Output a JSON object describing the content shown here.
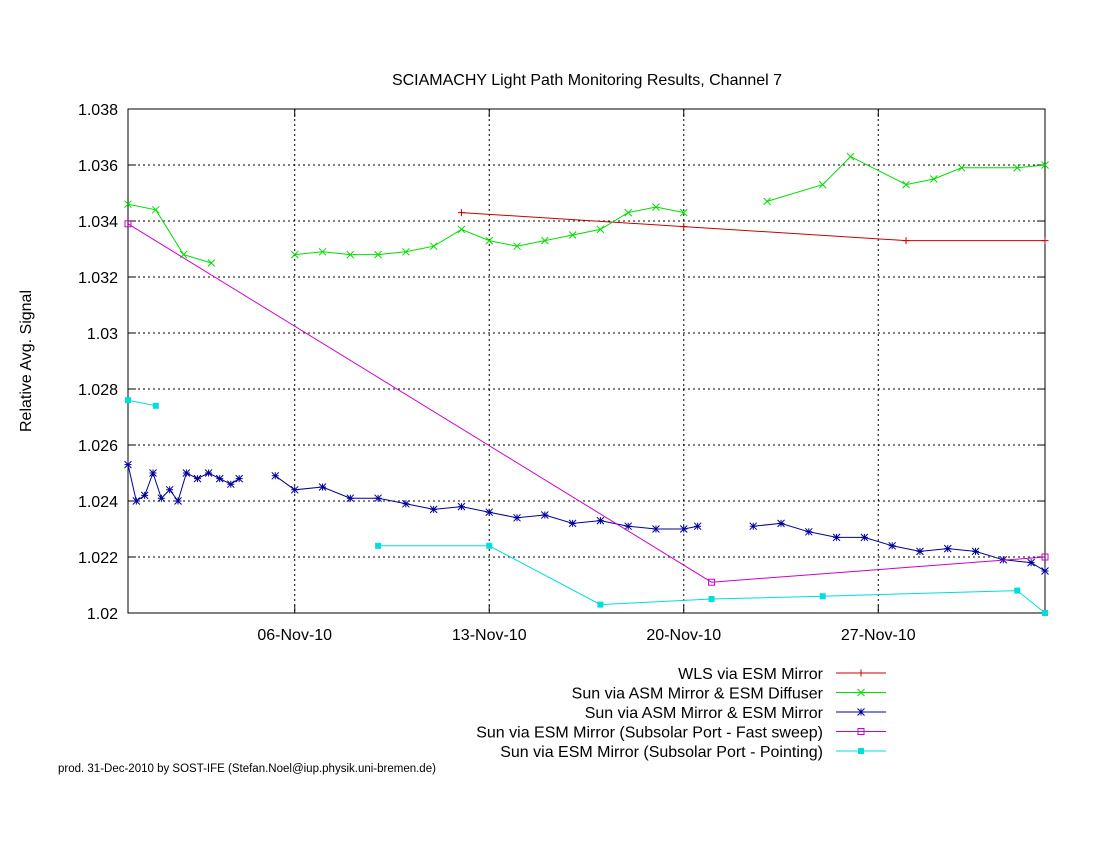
{
  "chart_data": {
    "type": "line",
    "title": "SCIAMACHY Light Path Monitoring Results, Channel 7",
    "ylabel": "Relative Avg. Signal",
    "xlabel": "",
    "x_type": "date",
    "xlim": [
      "2010-10-31",
      "2010-12-03"
    ],
    "ylim": [
      1.02,
      1.038
    ],
    "yticks": [
      1.02,
      1.022,
      1.024,
      1.026,
      1.028,
      1.03,
      1.032,
      1.034,
      1.036,
      1.038
    ],
    "ytick_labels": [
      "1.02",
      "1.022",
      "1.024",
      "1.026",
      "1.028",
      "1.03",
      "1.032",
      "1.034",
      "1.036",
      "1.038"
    ],
    "xticks": [
      "2010-11-06",
      "2010-11-13",
      "2010-11-20",
      "2010-11-27"
    ],
    "xtick_labels": [
      "06-Nov-10",
      "13-Nov-10",
      "20-Nov-10",
      "27-Nov-10"
    ],
    "grid": true,
    "legend_position": "below-right",
    "series": [
      {
        "name": "WLS via ESM Mirror",
        "color": "#cc0000",
        "marker": "plus",
        "segments": [
          [
            [
              "2010-11-12",
              1.0343
            ],
            [
              "2010-11-20",
              1.0338
            ],
            [
              "2010-11-28",
              1.0333
            ],
            [
              "2010-12-03",
              1.0333
            ]
          ]
        ]
      },
      {
        "name": "Sun via ASM Mirror & ESM Diffuser",
        "color": "#00dd00",
        "marker": "x",
        "segments": [
          [
            [
              "2010-10-31",
              1.0346
            ],
            [
              "2010-11-01",
              1.0344
            ],
            [
              "2010-11-02",
              1.0328
            ],
            [
              "2010-11-03",
              1.0325
            ]
          ],
          [
            [
              "2010-11-06",
              1.0328
            ],
            [
              "2010-11-07",
              1.0329
            ],
            [
              "2010-11-08",
              1.0328
            ],
            [
              "2010-11-09",
              1.0328
            ],
            [
              "2010-11-10",
              1.0329
            ],
            [
              "2010-11-11",
              1.0331
            ],
            [
              "2010-11-12",
              1.0337
            ],
            [
              "2010-11-13",
              1.0333
            ],
            [
              "2010-11-14",
              1.0331
            ],
            [
              "2010-11-15",
              1.0333
            ],
            [
              "2010-11-16",
              1.0335
            ],
            [
              "2010-11-17",
              1.0337
            ],
            [
              "2010-11-18",
              1.0343
            ],
            [
              "2010-11-19",
              1.0345
            ],
            [
              "2010-11-20",
              1.0343
            ]
          ],
          [
            [
              "2010-11-23",
              1.0347
            ],
            [
              "2010-11-25",
              1.0353
            ],
            [
              "2010-11-26",
              1.0363
            ],
            [
              "2010-11-28",
              1.0353
            ],
            [
              "2010-11-29",
              1.0355
            ],
            [
              "2010-11-30",
              1.0359
            ],
            [
              "2010-12-02",
              1.0359
            ],
            [
              "2010-12-03",
              1.036
            ]
          ]
        ]
      },
      {
        "name": "Sun via ASM Mirror & ESM Mirror",
        "color": "#000099",
        "marker": "star",
        "segments": [
          [
            [
              "2010-10-31",
              1.0253
            ],
            [
              "2010-10-31.3",
              1.024
            ],
            [
              "2010-10-31.6",
              1.0242
            ],
            [
              "2010-10-31.9",
              1.025
            ],
            [
              "2010-11-01.2",
              1.0241
            ],
            [
              "2010-11-01.5",
              1.0244
            ],
            [
              "2010-11-01.8",
              1.024
            ],
            [
              "2010-11-02.1",
              1.025
            ],
            [
              "2010-11-02.5",
              1.0248
            ],
            [
              "2010-11-02.9",
              1.025
            ],
            [
              "2010-11-03.3",
              1.0248
            ],
            [
              "2010-11-03.7",
              1.0246
            ],
            [
              "2010-11-04",
              1.0248
            ]
          ],
          [
            [
              "2010-11-05.3",
              1.0249
            ],
            [
              "2010-11-06",
              1.0244
            ],
            [
              "2010-11-07",
              1.0245
            ],
            [
              "2010-11-08",
              1.0241
            ],
            [
              "2010-11-09",
              1.0241
            ],
            [
              "2010-11-10",
              1.0239
            ],
            [
              "2010-11-11",
              1.0237
            ],
            [
              "2010-11-12",
              1.0238
            ],
            [
              "2010-11-13",
              1.0236
            ],
            [
              "2010-11-14",
              1.0234
            ],
            [
              "2010-11-15",
              1.0235
            ],
            [
              "2010-11-16",
              1.0232
            ],
            [
              "2010-11-17",
              1.0233
            ],
            [
              "2010-11-18",
              1.0231
            ],
            [
              "2010-11-19",
              1.023
            ],
            [
              "2010-11-20",
              1.023
            ],
            [
              "2010-11-20.5",
              1.0231
            ]
          ],
          [
            [
              "2010-11-22.5",
              1.0231
            ],
            [
              "2010-11-23.5",
              1.0232
            ],
            [
              "2010-11-24.5",
              1.0229
            ],
            [
              "2010-11-25.5",
              1.0227
            ],
            [
              "2010-11-26.5",
              1.0227
            ],
            [
              "2010-11-27.5",
              1.0224
            ],
            [
              "2010-11-28.5",
              1.0222
            ],
            [
              "2010-11-29.5",
              1.0223
            ],
            [
              "2010-11-30.5",
              1.0222
            ],
            [
              "2010-12-01.5",
              1.0219
            ],
            [
              "2010-12-02.5",
              1.0218
            ],
            [
              "2010-12-03",
              1.0215
            ]
          ]
        ]
      },
      {
        "name": "Sun via ESM Mirror (Subsolar Port - Fast sweep)",
        "color": "#cc00cc",
        "marker": "square",
        "segments": [
          [
            [
              "2010-10-31",
              1.0339
            ],
            [
              "2010-11-21",
              1.0211
            ],
            [
              "2010-12-03",
              1.022
            ]
          ]
        ]
      },
      {
        "name": "Sun via ESM Mirror (Subsolar Port - Pointing)",
        "color": "#00dddd",
        "marker": "filled-square",
        "segments": [
          [
            [
              "2010-10-31",
              1.0276
            ],
            [
              "2010-11-01",
              1.0274
            ]
          ],
          [
            [
              "2010-11-09",
              1.0224
            ],
            [
              "2010-11-13",
              1.0224
            ],
            [
              "2010-11-17",
              1.0203
            ],
            [
              "2010-11-21",
              1.0205
            ],
            [
              "2010-11-25",
              1.0206
            ],
            [
              "2010-12-02",
              1.0208
            ],
            [
              "2010-12-03",
              1.02
            ]
          ]
        ]
      }
    ]
  },
  "footer": {
    "credit": "prod. 31-Dec-2010 by SOST-IFE (Stefan.Noel@iup.physik.uni-bremen.de)"
  }
}
